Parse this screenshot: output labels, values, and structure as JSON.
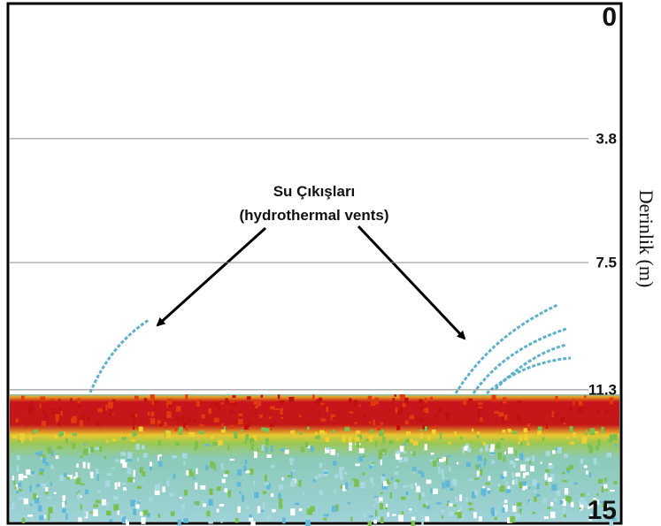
{
  "annotation": {
    "line1": "Su Çıkışları",
    "line2": "(hydrothermal vents)"
  },
  "depth_axis": {
    "title": "Derinlik (m)",
    "lim": [
      0,
      15
    ],
    "ticks": [
      0,
      3.8,
      7.5,
      11.3,
      15
    ]
  }
}
